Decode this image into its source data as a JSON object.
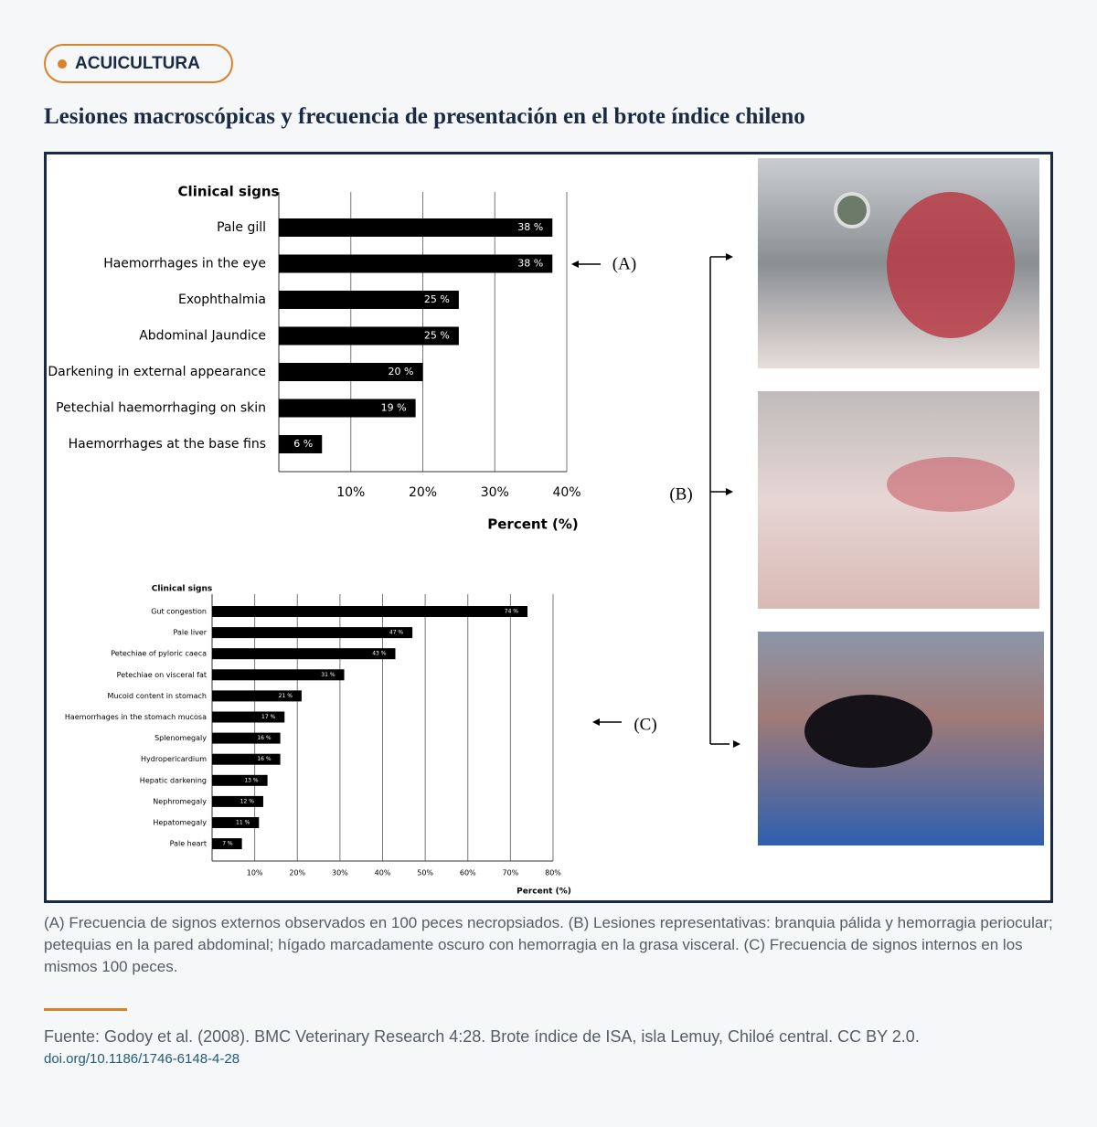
{
  "tag": "ACUICULTURA",
  "title": "Lesiones macroscópicas y frecuencia de presentación en el brote índice chileno",
  "figure": {
    "chart_a": {
      "type": "bar",
      "orientation": "horizontal",
      "title": "Clinical signs",
      "x_label": "Percent (%)",
      "categories": [
        "Pale gill",
        "Haemorrhages in the eye",
        "Exophthalmia",
        "Abdominal Jaundice",
        "Darkening in external appearance",
        "Petechial haemorrhaging on skin",
        "Haemorrhages at the base fins"
      ],
      "values": [
        38,
        38,
        25,
        25,
        20,
        19,
        6
      ],
      "value_labels": [
        "38 %",
        "38 %",
        "25 %",
        "25 %",
        "20 %",
        "19 %",
        "6 %"
      ],
      "color": "#000000",
      "grid": true,
      "xlim": [
        0,
        40
      ],
      "xticks": [
        {
          "value": 10,
          "label": "10%"
        },
        {
          "value": 20,
          "label": "20%"
        },
        {
          "value": 30,
          "label": "30%"
        },
        {
          "value": 40,
          "label": "40%"
        }
      ]
    },
    "chart_c": {
      "type": "bar",
      "orientation": "horizontal",
      "title": "Clinical signs",
      "x_label": "Percent (%)",
      "categories": [
        "Gut congestion",
        "Pale liver",
        "Petechiae of pyloric caeca",
        "Petechiae on visceral fat",
        "Mucoid content in stomach",
        "Haemorrhages in the stomach mucosa",
        "Splenomegaly",
        "Hydropericardium",
        "Hepatic darkening",
        "Nephromegaly",
        "Hepatomegaly",
        "Pale heart"
      ],
      "values": [
        74,
        47,
        43,
        31,
        21,
        17,
        16,
        16,
        13,
        12,
        11,
        7
      ],
      "value_labels": [
        "74 %",
        "47 %",
        "43 %",
        "31 %",
        "21 %",
        "17 %",
        "16 %",
        "16 %",
        "13 %",
        "12 %",
        "11 %",
        "7 %"
      ],
      "color": "#000000",
      "grid": true,
      "xlim": [
        0,
        80
      ],
      "xticks": [
        {
          "value": 10,
          "label": "10%"
        },
        {
          "value": 20,
          "label": "20%"
        },
        {
          "value": 30,
          "label": "30%"
        },
        {
          "value": 40,
          "label": "40%"
        },
        {
          "value": 50,
          "label": "50%"
        },
        {
          "value": 60,
          "label": "60%"
        },
        {
          "value": 70,
          "label": "70%"
        },
        {
          "value": 80,
          "label": "80%"
        }
      ]
    },
    "annotations": {
      "a": "(A)",
      "b": "(B)",
      "c": "(C)"
    }
  },
  "caption": "(A) Frecuencia de signos externos observados en 100 peces necropsiados. (B) Lesiones representativas: branquia pálida y hemorragia periocular; petequias en la pared abdominal; hígado marcadamente oscuro con hemorragia en la grasa visceral. (C) Frecuencia de signos internos en los mismos 100 peces.",
  "source": {
    "text": "Fuente: Godoy et al. (2008). BMC Veterinary Research 4:28. Brote índice de ISA, isla Lemuy, Chiloé central. CC BY 2.0.",
    "doi": "doi.org/10.1186/1746-6148-4-28"
  }
}
